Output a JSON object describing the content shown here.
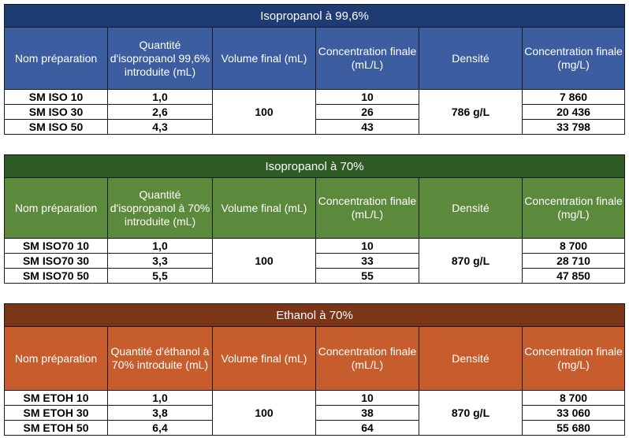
{
  "columns_generic": {
    "nom": "Nom préparation",
    "volume": "Volume final (mL)",
    "conc_ml": "Concentration finale (mL/L)",
    "densite": "Densité",
    "conc_mg": "Concentration finale (mg/L)"
  },
  "colors": {
    "blue_title": "#1f3b73",
    "blue_head": "#3c5da0",
    "green_title": "#2e5a25",
    "green_head": "#5b8a3c",
    "orange_title": "#7a3418",
    "orange_head": "#c75d2c"
  },
  "tables": [
    {
      "title": "Isopropanol à 99,6%",
      "qty_header": "Quantité d'isopropanol 99,6% introduite (mL)",
      "volume_final": "100",
      "densite": "786 g/L",
      "rows": [
        {
          "nom": "SM ISO 10",
          "qty": "1,0",
          "conc_ml": "10",
          "conc_mg": "7 860"
        },
        {
          "nom": "SM ISO 30",
          "qty": "2,6",
          "conc_ml": "26",
          "conc_mg": "20 436"
        },
        {
          "nom": "SM ISO 50",
          "qty": "4,3",
          "conc_ml": "43",
          "conc_mg": "33 798"
        }
      ]
    },
    {
      "title": "Isopropanol à 70%",
      "qty_header": "Quantité d'isopropanol à 70% introduite (mL)",
      "volume_final": "100",
      "densite": "870 g/L",
      "rows": [
        {
          "nom": "SM ISO70 10",
          "qty": "1,0",
          "conc_ml": "10",
          "conc_mg": "8 700"
        },
        {
          "nom": "SM ISO70 30",
          "qty": "3,3",
          "conc_ml": "33",
          "conc_mg": "28 710"
        },
        {
          "nom": "SM ISO70 50",
          "qty": "5,5",
          "conc_ml": "55",
          "conc_mg": "47 850"
        }
      ]
    },
    {
      "title": "Ethanol à 70%",
      "qty_header": "Quantité d'éthanol à 70% introduite (mL)",
      "volume_final": "100",
      "densite": "870 g/L",
      "rows": [
        {
          "nom": "SM ETOH 10",
          "qty": "1,0",
          "conc_ml": "10",
          "conc_mg": "8 700"
        },
        {
          "nom": "SM ETOH 30",
          "qty": "3,8",
          "conc_ml": "38",
          "conc_mg": "33 060"
        },
        {
          "nom": "SM ETOH 50",
          "qty": "6,4",
          "conc_ml": "64",
          "conc_mg": "55 680"
        }
      ]
    }
  ]
}
